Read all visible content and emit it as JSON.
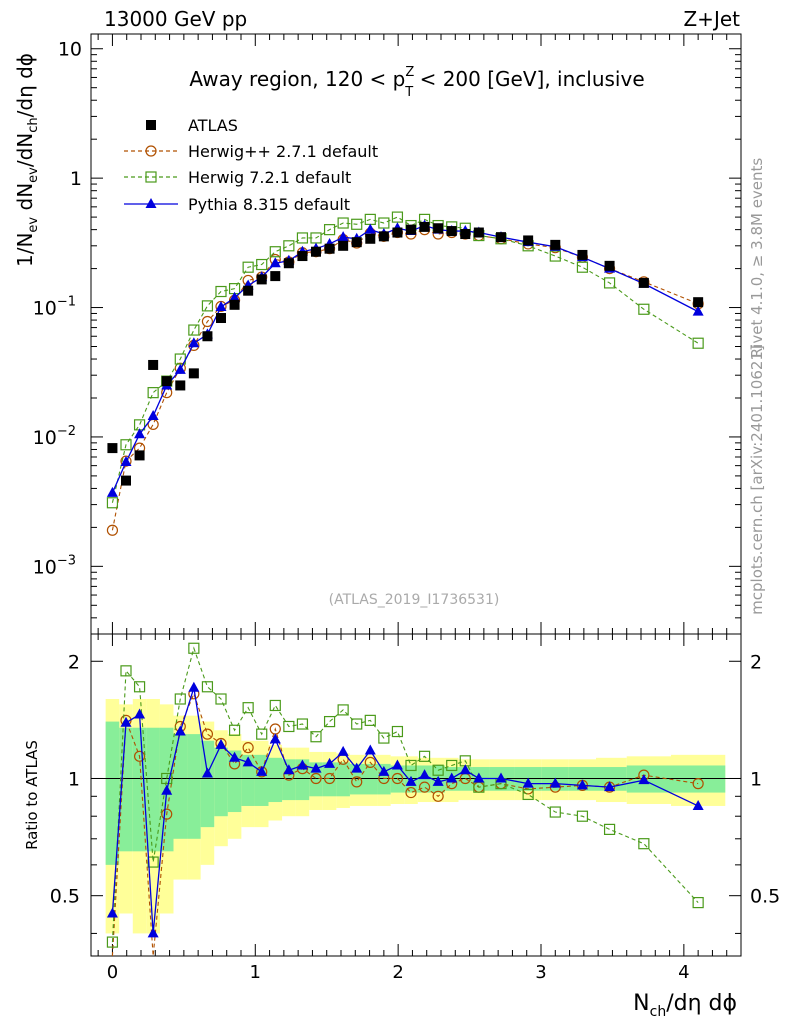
{
  "header": {
    "left": "13000 GeV pp",
    "right": "Z+Jet"
  },
  "side_labels": {
    "rivet": "Rivet 4.1.0, ≥ 3.8M events",
    "mcplots": "mcplots.cern.ch [arXiv:2401.10621]"
  },
  "chart_data": {
    "type": "scatter",
    "title_prefix": "Away region, 120 < p",
    "title_sup": "Z",
    "title_sub": "T",
    "title_suffix": " < 200 [GeV], inclusive",
    "analysis_id": "(ATLAS_2019_I1736531)",
    "xlabel": "N",
    "xlabel_sub": "ch",
    "xlabel_tail": "/dη dϕ",
    "ylabel_main": "1/N",
    "ylabel_sub1": "ev",
    "ylabel_mid": " dN",
    "ylabel_sub2": "ev",
    "ylabel_mid2": "/dN",
    "ylabel_sub3": "ch",
    "ylabel_tail": "/dη dϕ",
    "ratio_ylabel": "Ratio to ATLAS",
    "xlim": [
      -0.15,
      4.4
    ],
    "ylim": [
      0.0003,
      13
    ],
    "yscale": "log",
    "ratio_ylim": [
      0.35,
      2.35
    ],
    "x_ticks": [
      "0",
      "1",
      "2",
      "3",
      "4"
    ],
    "y_ticks": [
      {
        "mantissa": "10",
        "exp": "−3"
      },
      {
        "mantissa": "10",
        "exp": "−2"
      },
      {
        "mantissa": "10",
        "exp": "−1"
      },
      {
        "mantissa": "1",
        "exp": ""
      },
      {
        "mantissa": "10",
        "exp": ""
      }
    ],
    "ratio_ticks": [
      "0.5",
      "1",
      "2"
    ],
    "x": [
      0.0,
      0.095,
      0.19,
      0.285,
      0.38,
      0.475,
      0.57,
      0.665,
      0.76,
      0.855,
      0.95,
      1.045,
      1.14,
      1.235,
      1.33,
      1.425,
      1.52,
      1.615,
      1.71,
      1.805,
      1.9,
      1.995,
      2.09,
      2.185,
      2.28,
      2.375,
      2.47,
      2.565,
      2.72,
      2.91,
      3.1,
      3.29,
      3.48,
      3.72,
      4.1
    ],
    "series": [
      {
        "name": "ATLAS",
        "color": "#000000",
        "marker": "square-filled",
        "values": [
          0.0082,
          0.0046,
          0.0072,
          0.036,
          0.027,
          0.025,
          0.031,
          0.06,
          0.083,
          0.105,
          0.135,
          0.165,
          0.175,
          0.22,
          0.25,
          0.27,
          0.285,
          0.3,
          0.32,
          0.34,
          0.355,
          0.38,
          0.4,
          0.42,
          0.41,
          0.39,
          0.37,
          0.38,
          0.35,
          0.33,
          0.305,
          0.255,
          0.21,
          0.155,
          0.11
        ]
      },
      {
        "name": "Herwig++ 2.7.1 default",
        "color": "#b05000",
        "marker": "circle-open",
        "values": [
          0.0019,
          0.0065,
          0.0082,
          0.0125,
          0.022,
          0.034,
          0.051,
          0.078,
          0.102,
          0.114,
          0.162,
          0.172,
          0.235,
          0.225,
          0.265,
          0.27,
          0.285,
          0.335,
          0.315,
          0.375,
          0.355,
          0.38,
          0.37,
          0.4,
          0.37,
          0.38,
          0.37,
          0.36,
          0.34,
          0.31,
          0.29,
          0.245,
          0.2,
          0.158,
          0.107
        ]
      },
      {
        "name": "Herwig 7.2.1 default",
        "color": "#4a9a1a",
        "marker": "square-open",
        "values": [
          0.0031,
          0.0087,
          0.0124,
          0.022,
          0.027,
          0.04,
          0.067,
          0.103,
          0.133,
          0.14,
          0.205,
          0.215,
          0.27,
          0.3,
          0.345,
          0.345,
          0.4,
          0.45,
          0.44,
          0.48,
          0.45,
          0.5,
          0.43,
          0.48,
          0.43,
          0.42,
          0.41,
          0.36,
          0.34,
          0.3,
          0.25,
          0.205,
          0.155,
          0.097,
          0.053
        ]
      },
      {
        "name": "Pythia 8.315 default",
        "color": "#0000dd",
        "marker": "triangle-filled",
        "values": [
          0.0037,
          0.0064,
          0.0105,
          0.0145,
          0.025,
          0.033,
          0.053,
          0.062,
          0.101,
          0.119,
          0.148,
          0.172,
          0.22,
          0.23,
          0.27,
          0.285,
          0.31,
          0.35,
          0.34,
          0.4,
          0.37,
          0.41,
          0.39,
          0.43,
          0.4,
          0.39,
          0.39,
          0.38,
          0.35,
          0.32,
          0.295,
          0.245,
          0.2,
          0.153,
          0.093
        ]
      }
    ],
    "ratios": [
      {
        "name": "Herwig++ 2.7.1 default",
        "values": [
          0.23,
          1.41,
          1.14,
          0.35,
          0.81,
          1.36,
          1.65,
          1.3,
          1.23,
          1.09,
          1.2,
          1.04,
          1.34,
          1.02,
          1.06,
          1.0,
          1.0,
          1.12,
          0.98,
          1.1,
          1.0,
          1.0,
          0.92,
          0.95,
          0.9,
          0.97,
          1.0,
          0.95,
          0.97,
          0.94,
          0.95,
          0.96,
          0.95,
          1.02,
          0.97
        ]
      },
      {
        "name": "Herwig 7.2.1 default",
        "values": [
          0.38,
          1.89,
          1.72,
          0.61,
          1.0,
          1.6,
          2.16,
          1.72,
          1.6,
          1.33,
          1.52,
          1.3,
          1.54,
          1.36,
          1.38,
          1.28,
          1.4,
          1.5,
          1.38,
          1.41,
          1.27,
          1.32,
          1.08,
          1.14,
          1.05,
          1.08,
          1.11,
          0.95,
          0.97,
          0.91,
          0.82,
          0.8,
          0.74,
          0.68,
          0.48
        ]
      },
      {
        "name": "Pythia 8.315 default",
        "values": [
          0.45,
          1.39,
          1.46,
          0.4,
          0.93,
          1.32,
          1.71,
          1.03,
          1.22,
          1.13,
          1.1,
          1.04,
          1.26,
          1.05,
          1.08,
          1.06,
          1.09,
          1.17,
          1.06,
          1.18,
          1.04,
          1.08,
          0.98,
          1.02,
          0.98,
          1.0,
          1.05,
          1.0,
          1.0,
          0.97,
          0.97,
          0.96,
          0.95,
          0.99,
          0.85
        ]
      }
    ],
    "band_stat_sys": {
      "inner": [
        0.4,
        0.35,
        0.35,
        0.35,
        0.35,
        0.3,
        0.3,
        0.25,
        0.2,
        0.18,
        0.15,
        0.15,
        0.13,
        0.12,
        0.12,
        0.1,
        0.1,
        0.1,
        0.09,
        0.09,
        0.09,
        0.08,
        0.08,
        0.08,
        0.08,
        0.07,
        0.07,
        0.07,
        0.07,
        0.07,
        0.07,
        0.07,
        0.07,
        0.08,
        0.08
      ],
      "outer": [
        0.6,
        0.55,
        0.6,
        0.6,
        0.55,
        0.45,
        0.45,
        0.4,
        0.33,
        0.3,
        0.25,
        0.25,
        0.22,
        0.2,
        0.2,
        0.17,
        0.17,
        0.16,
        0.15,
        0.15,
        0.15,
        0.14,
        0.14,
        0.13,
        0.13,
        0.13,
        0.12,
        0.12,
        0.12,
        0.12,
        0.12,
        0.12,
        0.13,
        0.14,
        0.15
      ]
    }
  }
}
